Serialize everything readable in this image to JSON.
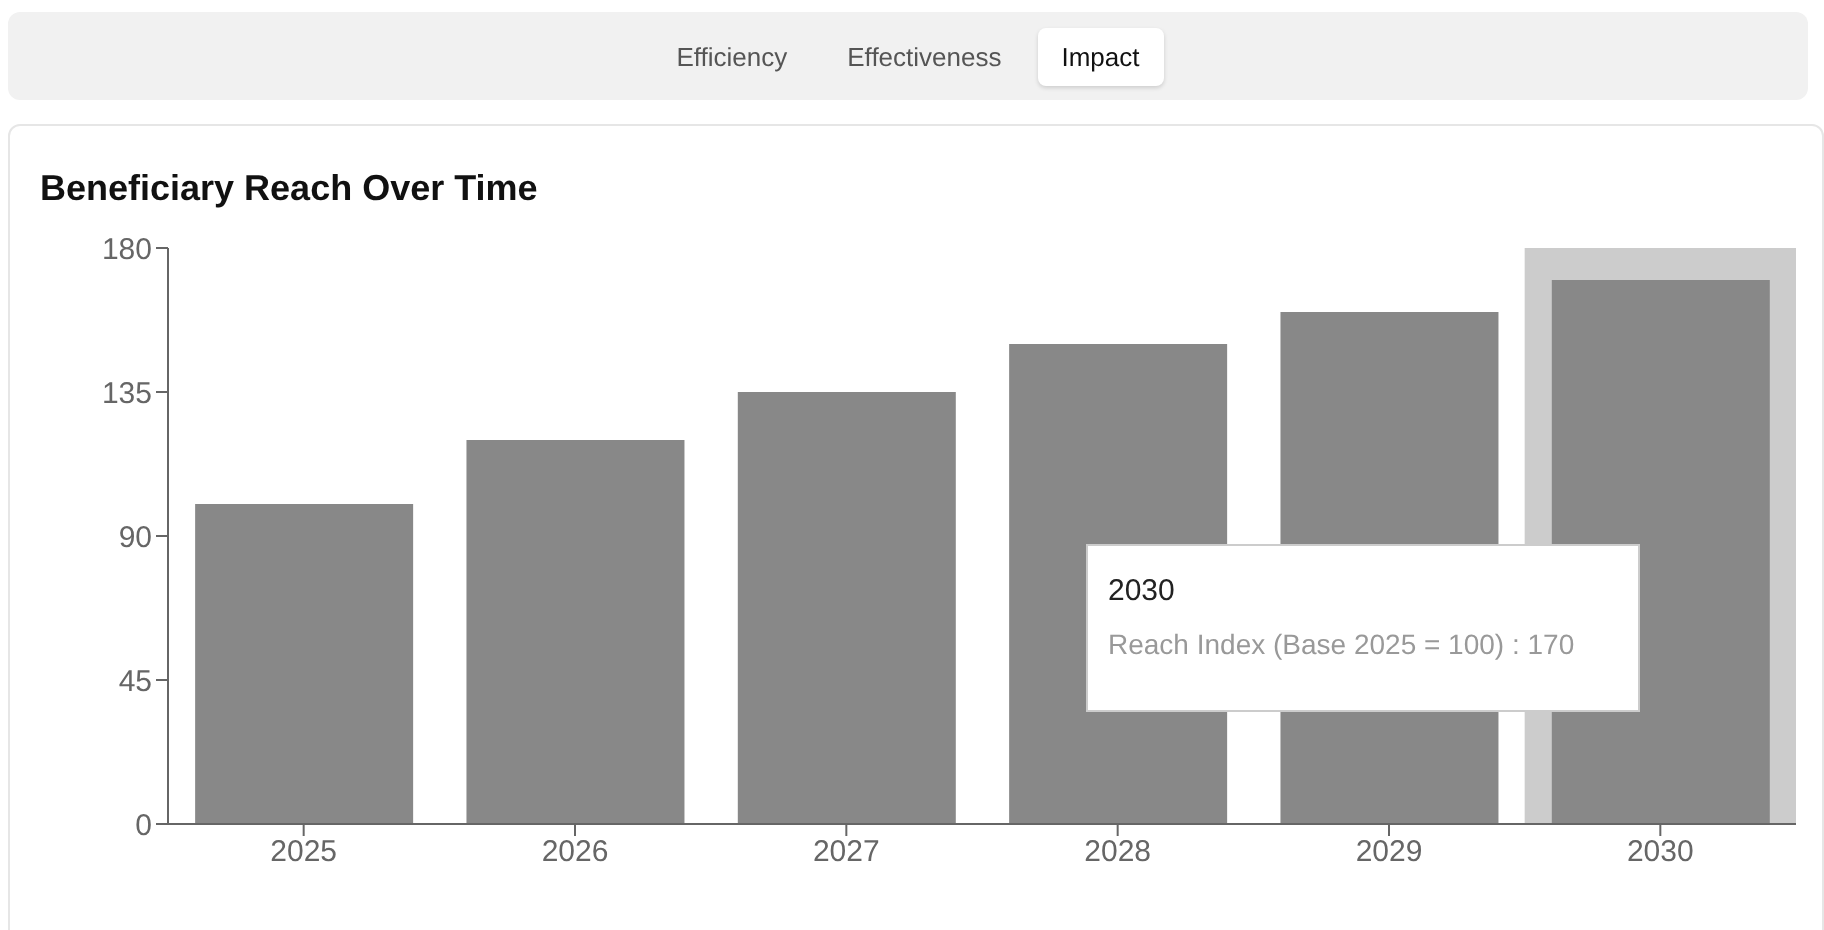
{
  "chart_data": {
    "type": "bar",
    "title": "Beneficiary Reach Over Time",
    "categories": [
      "2025",
      "2026",
      "2027",
      "2028",
      "2029",
      "2030"
    ],
    "values": [
      100,
      120,
      135,
      150,
      160,
      170
    ],
    "color": "#888888",
    "ylim": [
      0,
      180
    ],
    "yticks": [
      0,
      45,
      90,
      135,
      180
    ],
    "grid": false,
    "legend": false,
    "bands": [
      {
        "axis": "x",
        "from": "2030",
        "to": "2030",
        "color": "#cccccc"
      }
    ],
    "annotations": [
      "Efficiency",
      "Effectiveness",
      "Impact",
      "2030",
      "Reach Index (Base 2025 = 100) : 170"
    ]
  }
}
